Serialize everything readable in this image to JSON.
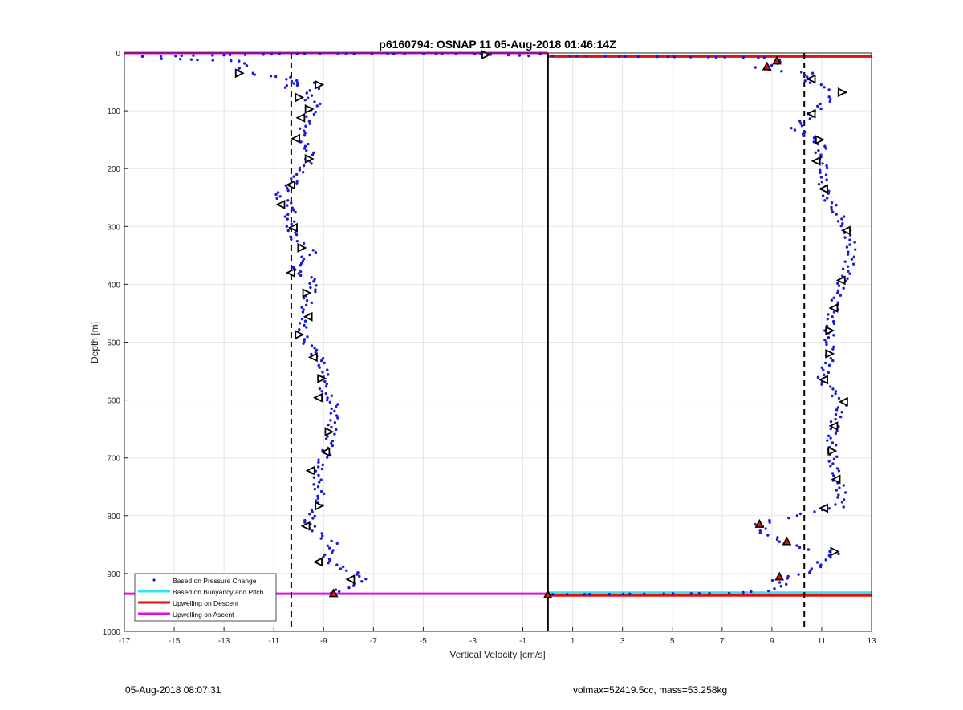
{
  "footer": {
    "left": "05-Aug-2018 08:07:31",
    "right": "volmax=52419.5cc, mass=53.258kg"
  },
  "colors": {
    "pressure": "#1a1ad6",
    "buoyancy": "#2ee6f0",
    "descent": "#e01010",
    "ascent": "#e010e0"
  },
  "chart_data": {
    "type": "scatter",
    "title": "p6160794: OSNAP 11 05-Aug-2018 01:46:14Z",
    "xlabel": "Vertical Velocity [cm/s]",
    "ylabel": "Depth [m]",
    "xlim": [
      -17,
      13
    ],
    "ylim": [
      0,
      1000
    ],
    "y_reversed": true,
    "grid": true,
    "xticks": [
      "-17",
      "-15",
      "-13",
      "-11",
      "-9",
      "-7",
      "-5",
      "-3",
      "-1",
      "1",
      "3",
      "5",
      "7",
      "9",
      "11",
      "13"
    ],
    "yticks": [
      "0",
      "100",
      "200",
      "300",
      "400",
      "500",
      "600",
      "700",
      "800",
      "900",
      "1000"
    ],
    "legend": {
      "placement": "bottom-left",
      "entries": [
        "Based on Pressure Change",
        "Based on Buoyancy and Pitch",
        "Upwelling on Descent",
        "Upwelling on Ascent"
      ]
    },
    "reference_lines": {
      "dashed_x": [
        -10.3,
        10.3
      ],
      "solid_x": [
        0
      ],
      "ascent_horizontal": [
        {
          "y": 0,
          "x1": -17,
          "x2": 0
        },
        {
          "y": 935,
          "x1": -17,
          "x2": 0
        }
      ],
      "descent_horizontal": [
        {
          "y": 6,
          "x1": 0,
          "x2": 13
        },
        {
          "y": 938,
          "x1": 0,
          "x2": 13
        }
      ],
      "buoyancy_horizontal": [
        {
          "y": 933,
          "x1": 0,
          "x2": 13
        }
      ]
    },
    "descent_path": [
      [
        0.2,
        5
      ],
      [
        8.8,
        8
      ],
      [
        9.5,
        15
      ],
      [
        8.5,
        25
      ],
      [
        9.0,
        30
      ],
      [
        10.6,
        35
      ],
      [
        10.3,
        45
      ],
      [
        10.8,
        55
      ],
      [
        11.8,
        68
      ],
      [
        11.3,
        80
      ],
      [
        10.9,
        92
      ],
      [
        10.6,
        105
      ],
      [
        10.3,
        118
      ],
      [
        9.9,
        130
      ],
      [
        10.3,
        140
      ],
      [
        10.8,
        150
      ],
      [
        11.0,
        165
      ],
      [
        10.8,
        180
      ],
      [
        11.1,
        195
      ],
      [
        11.0,
        215
      ],
      [
        11.1,
        235
      ],
      [
        11.3,
        255
      ],
      [
        11.6,
        275
      ],
      [
        11.9,
        295
      ],
      [
        12.1,
        315
      ],
      [
        12.2,
        340
      ],
      [
        12.1,
        365
      ],
      [
        11.9,
        390
      ],
      [
        11.6,
        415
      ],
      [
        11.5,
        440
      ],
      [
        11.4,
        460
      ],
      [
        11.3,
        480
      ],
      [
        11.3,
        500
      ],
      [
        11.4,
        520
      ],
      [
        11.2,
        540
      ],
      [
        11.0,
        565
      ],
      [
        11.4,
        585
      ],
      [
        11.9,
        605
      ],
      [
        11.6,
        625
      ],
      [
        11.5,
        650
      ],
      [
        11.4,
        670
      ],
      [
        11.4,
        690
      ],
      [
        11.5,
        710
      ],
      [
        11.6,
        735
      ],
      [
        11.8,
        760
      ],
      [
        11.7,
        785
      ],
      [
        10.9,
        790
      ],
      [
        10.0,
        800
      ],
      [
        9.0,
        808
      ],
      [
        8.5,
        815
      ],
      [
        8.7,
        830
      ],
      [
        9.4,
        845
      ],
      [
        10.1,
        855
      ],
      [
        11.2,
        862
      ],
      [
        11.5,
        866
      ],
      [
        11.2,
        872
      ],
      [
        10.9,
        885
      ],
      [
        10.6,
        895
      ],
      [
        9.8,
        905
      ],
      [
        9.2,
        912
      ],
      [
        9.5,
        922
      ],
      [
        8.9,
        930
      ],
      [
        7.2,
        934
      ],
      [
        4.5,
        935
      ],
      [
        1.3,
        936
      ],
      [
        0.2,
        936
      ]
    ],
    "ascent_path": [
      [
        -8.7,
        934
      ],
      [
        -8.4,
        928
      ],
      [
        -7.6,
        918
      ],
      [
        -7.4,
        905
      ],
      [
        -8.0,
        895
      ],
      [
        -8.5,
        885
      ],
      [
        -8.9,
        875
      ],
      [
        -8.8,
        860
      ],
      [
        -8.6,
        848
      ],
      [
        -9.1,
        835
      ],
      [
        -9.5,
        822
      ],
      [
        -9.6,
        808
      ],
      [
        -9.3,
        790
      ],
      [
        -9.1,
        770
      ],
      [
        -9.2,
        750
      ],
      [
        -9.3,
        730
      ],
      [
        -9.2,
        712
      ],
      [
        -8.9,
        695
      ],
      [
        -8.8,
        675
      ],
      [
        -8.7,
        655
      ],
      [
        -8.6,
        635
      ],
      [
        -8.5,
        615
      ],
      [
        -8.7,
        600
      ],
      [
        -9.0,
        585
      ],
      [
        -9.0,
        568
      ],
      [
        -9.0,
        548
      ],
      [
        -9.2,
        528
      ],
      [
        -9.5,
        510
      ],
      [
        -9.8,
        495
      ],
      [
        -9.9,
        478
      ],
      [
        -9.7,
        460
      ],
      [
        -9.7,
        440
      ],
      [
        -9.6,
        420
      ],
      [
        -9.3,
        402
      ],
      [
        -9.6,
        388
      ],
      [
        -10.1,
        378
      ],
      [
        -10.0,
        360
      ],
      [
        -9.4,
        345
      ],
      [
        -9.9,
        333
      ],
      [
        -10.2,
        318
      ],
      [
        -10.3,
        300
      ],
      [
        -10.4,
        283
      ],
      [
        -10.2,
        268
      ],
      [
        -10.5,
        255
      ],
      [
        -10.9,
        248
      ],
      [
        -10.6,
        238
      ],
      [
        -10.2,
        225
      ],
      [
        -10.1,
        210
      ],
      [
        -9.7,
        195
      ],
      [
        -9.5,
        180
      ],
      [
        -9.6,
        165
      ],
      [
        -10.0,
        150
      ],
      [
        -9.8,
        135
      ],
      [
        -9.7,
        118
      ],
      [
        -9.5,
        102
      ],
      [
        -9.3,
        88
      ],
      [
        -9.7,
        78
      ],
      [
        -9.5,
        65
      ],
      [
        -9.1,
        55
      ],
      [
        -9.9,
        48
      ],
      [
        -10.4,
        60
      ],
      [
        -10.3,
        42
      ],
      [
        -11.2,
        40
      ],
      [
        -12.0,
        35
      ],
      [
        -12.6,
        30
      ],
      [
        -12.2,
        22
      ],
      [
        -12.4,
        14
      ],
      [
        -15.4,
        10
      ],
      [
        -16.1,
        6
      ],
      [
        -9.6,
        1
      ],
      [
        -2.6,
        2
      ],
      [
        -0.8,
        5
      ],
      [
        -0.3,
        2
      ]
    ],
    "descent_markers": [
      [
        9.2,
        14
      ],
      [
        8.8,
        24
      ],
      [
        8.5,
        815
      ],
      [
        9.6,
        845
      ],
      [
        9.3,
        906
      ],
      [
        0.0,
        937
      ]
    ],
    "ascent_markers": [
      [
        -8.6,
        935
      ]
    ],
    "open_markers": [
      [
        -2.5,
        3
      ],
      [
        -12.4,
        35
      ],
      [
        -9.2,
        55
      ],
      [
        -10.0,
        77
      ],
      [
        -9.6,
        97
      ],
      [
        -9.9,
        112
      ],
      [
        -10.1,
        148
      ],
      [
        -9.6,
        183
      ],
      [
        -10.3,
        228
      ],
      [
        -10.7,
        262
      ],
      [
        -10.2,
        302
      ],
      [
        -9.9,
        337
      ],
      [
        -10.3,
        380
      ],
      [
        -9.7,
        415
      ],
      [
        -9.6,
        456
      ],
      [
        -10.0,
        487
      ],
      [
        -9.4,
        526
      ],
      [
        -9.1,
        563
      ],
      [
        -9.2,
        596
      ],
      [
        -8.8,
        655
      ],
      [
        -8.9,
        690
      ],
      [
        -9.5,
        722
      ],
      [
        -9.2,
        783
      ],
      [
        -9.7,
        818
      ],
      [
        -9.2,
        880
      ],
      [
        -7.9,
        910
      ],
      [
        10.6,
        45
      ],
      [
        11.8,
        68
      ],
      [
        10.6,
        105
      ],
      [
        10.9,
        150
      ],
      [
        10.8,
        187
      ],
      [
        11.1,
        235
      ],
      [
        12.0,
        307
      ],
      [
        11.8,
        393
      ],
      [
        11.5,
        441
      ],
      [
        11.3,
        480
      ],
      [
        11.3,
        520
      ],
      [
        11.1,
        565
      ],
      [
        11.9,
        603
      ],
      [
        11.5,
        645
      ],
      [
        11.4,
        688
      ],
      [
        11.6,
        737
      ],
      [
        11.1,
        787
      ],
      [
        11.5,
        862
      ]
    ]
  }
}
